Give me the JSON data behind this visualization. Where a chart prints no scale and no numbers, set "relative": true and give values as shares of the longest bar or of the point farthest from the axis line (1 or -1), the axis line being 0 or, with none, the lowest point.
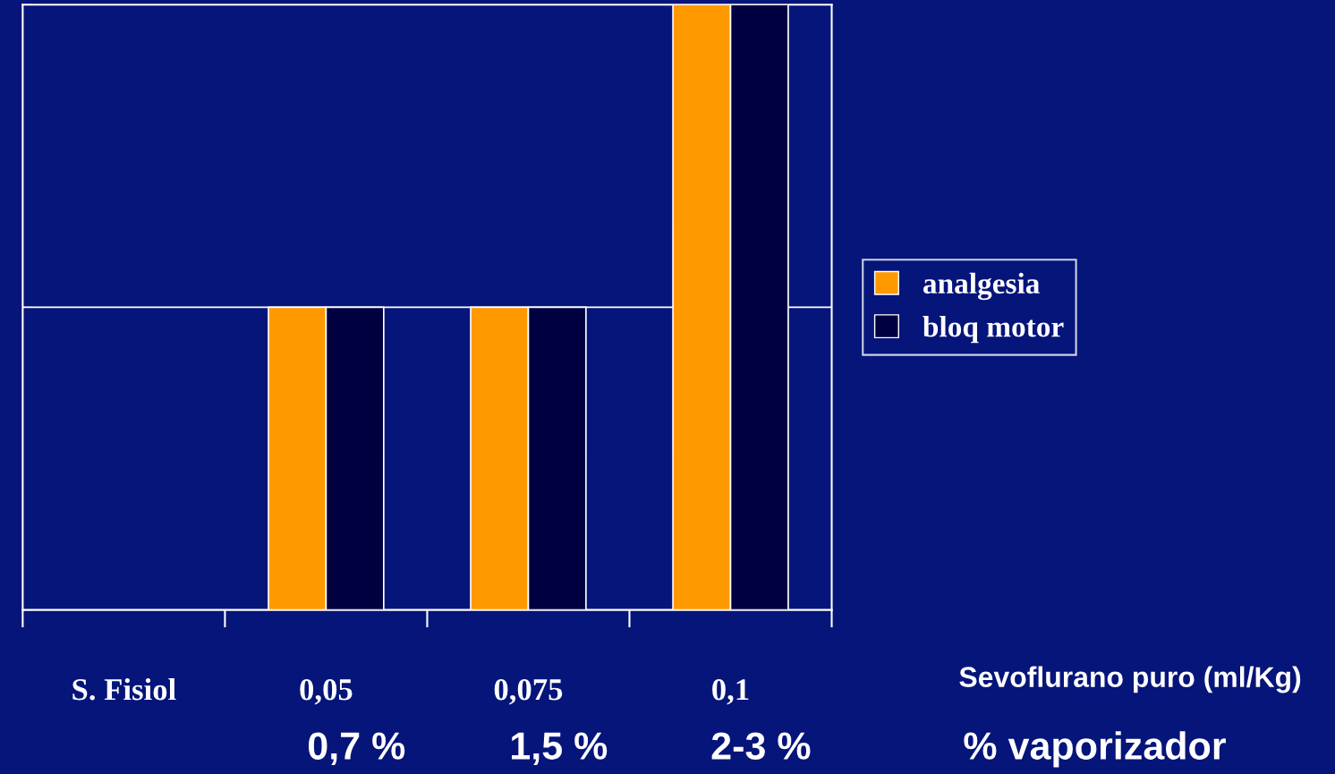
{
  "chart_data": {
    "type": "bar",
    "relative": true,
    "categories": [
      "S. Fisiol",
      "0,05",
      "0,075",
      "0,1"
    ],
    "series": [
      {
        "name": "analgesia",
        "color": "#ff9900",
        "values": [
          0,
          0.5,
          0.5,
          1
        ]
      },
      {
        "name": "bloq motor",
        "color": "#000040",
        "values": [
          0,
          0.5,
          0.5,
          1
        ]
      }
    ],
    "xlabel": "Sevoflurano puro (ml/Kg)",
    "annotations": [
      "0,7 %",
      "1,5 %",
      "2-3 %",
      "% vaporizador"
    ],
    "ref_lines": [
      {
        "axis": "y",
        "value": 0.5,
        "color": "#ffffff"
      }
    ],
    "legend": "right"
  }
}
